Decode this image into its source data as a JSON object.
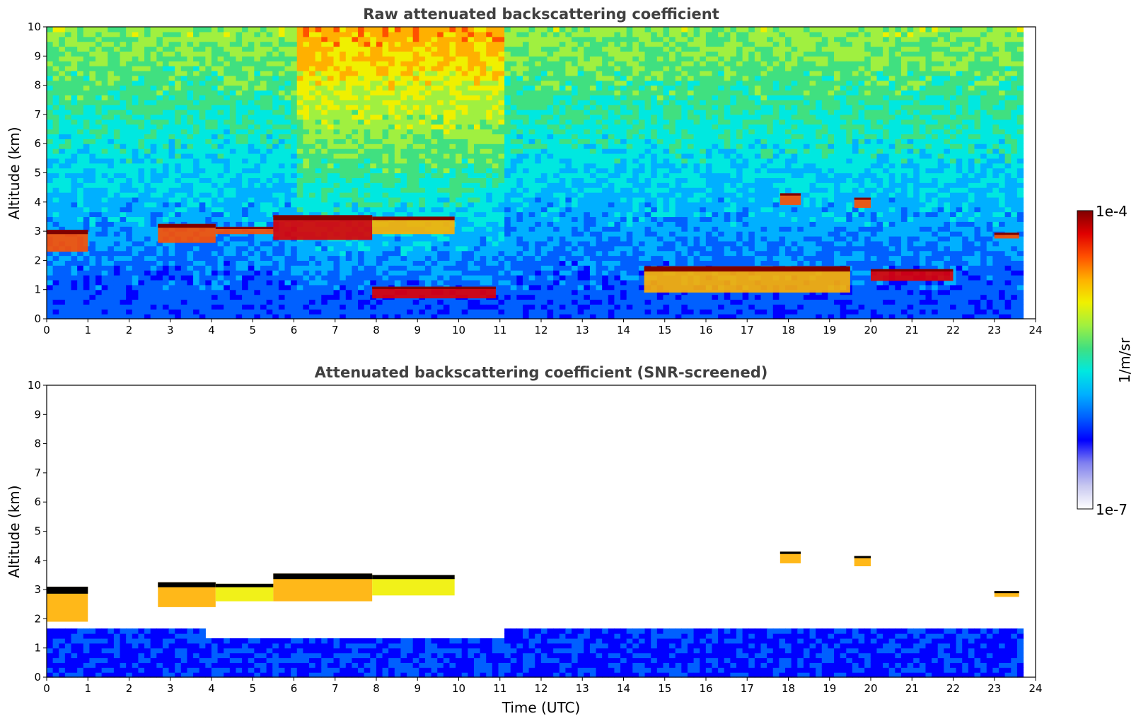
{
  "chart_data": [
    {
      "type": "heatmap",
      "title": "Raw attenuated backscattering coefficient",
      "xlabel": "",
      "ylabel": "Altitude (km)",
      "xlim": [
        0,
        24
      ],
      "ylim": [
        0,
        10
      ],
      "xticks": [
        0,
        1,
        2,
        3,
        4,
        5,
        6,
        7,
        8,
        9,
        10,
        11,
        12,
        13,
        14,
        15,
        16,
        17,
        18,
        19,
        20,
        21,
        22,
        23,
        24
      ],
      "yticks": [
        0,
        1,
        2,
        3,
        4,
        5,
        6,
        7,
        8,
        9,
        10
      ],
      "data_end_time": 23.7,
      "features": [
        {
          "kind": "cloud",
          "t0": 0.0,
          "t1": 1.0,
          "base": 2.3,
          "top": 3.05,
          "intensity": 0.85
        },
        {
          "kind": "cloud",
          "t0": 2.7,
          "t1": 4.1,
          "base": 2.6,
          "top": 3.25,
          "intensity": 0.85
        },
        {
          "kind": "cloud",
          "t0": 4.1,
          "t1": 5.5,
          "base": 2.9,
          "top": 3.15,
          "intensity": 0.8
        },
        {
          "kind": "cloud",
          "t0": 5.5,
          "t1": 7.9,
          "base": 2.7,
          "top": 3.55,
          "intensity": 0.9
        },
        {
          "kind": "cloud",
          "t0": 7.9,
          "t1": 9.9,
          "base": 2.9,
          "top": 3.5,
          "intensity": 0.7
        },
        {
          "kind": "cloud",
          "t0": 7.9,
          "t1": 10.9,
          "base": 0.7,
          "top": 1.1,
          "intensity": 0.9
        },
        {
          "kind": "cloud",
          "t0": 17.8,
          "t1": 18.3,
          "base": 3.9,
          "top": 4.3,
          "intensity": 0.8
        },
        {
          "kind": "cloud",
          "t0": 19.6,
          "t1": 20.0,
          "base": 3.8,
          "top": 4.15,
          "intensity": 0.8
        },
        {
          "kind": "cloud",
          "t0": 23.0,
          "t1": 23.6,
          "base": 2.75,
          "top": 2.95,
          "intensity": 0.85
        },
        {
          "kind": "cloud",
          "t0": 20.0,
          "t1": 22.0,
          "base": 1.3,
          "top": 1.7,
          "intensity": 0.9
        },
        {
          "kind": "cloud",
          "t0": 14.5,
          "t1": 19.5,
          "base": 0.9,
          "top": 1.8,
          "intensity": 0.75
        }
      ]
    },
    {
      "type": "heatmap",
      "title": "Attenuated backscattering coefficient (SNR-screened)",
      "xlabel": "Time (UTC)",
      "ylabel": "Altitude (km)",
      "xlim": [
        0,
        24
      ],
      "ylim": [
        0,
        10
      ],
      "xticks": [
        0,
        1,
        2,
        3,
        4,
        5,
        6,
        7,
        8,
        9,
        10,
        11,
        12,
        13,
        14,
        15,
        16,
        17,
        18,
        19,
        20,
        21,
        22,
        23,
        24
      ],
      "yticks": [
        0,
        1,
        2,
        3,
        4,
        5,
        6,
        7,
        8,
        9,
        10
      ],
      "data_end_time": 23.7,
      "features": [
        {
          "kind": "cloud",
          "t0": 0.0,
          "t1": 1.0,
          "base": 1.9,
          "top": 3.1,
          "intensity": 0.75
        },
        {
          "kind": "cloud",
          "t0": 2.7,
          "t1": 4.1,
          "base": 2.4,
          "top": 3.25,
          "intensity": 0.7
        },
        {
          "kind": "cloud",
          "t0": 4.1,
          "t1": 5.5,
          "base": 2.6,
          "top": 3.2,
          "intensity": 0.6
        },
        {
          "kind": "cloud",
          "t0": 5.5,
          "t1": 7.9,
          "base": 2.6,
          "top": 3.55,
          "intensity": 0.75
        },
        {
          "kind": "cloud",
          "t0": 7.9,
          "t1": 9.9,
          "base": 2.8,
          "top": 3.5,
          "intensity": 0.6
        },
        {
          "kind": "cloud",
          "t0": 17.8,
          "t1": 18.3,
          "base": 3.9,
          "top": 4.3,
          "intensity": 0.7
        },
        {
          "kind": "cloud",
          "t0": 19.6,
          "t1": 20.0,
          "base": 3.8,
          "top": 4.15,
          "intensity": 0.7
        },
        {
          "kind": "cloud",
          "t0": 23.0,
          "t1": 23.6,
          "base": 2.75,
          "top": 2.95,
          "intensity": 0.7
        }
      ]
    }
  ],
  "colorbar": {
    "min_label": "1e-7",
    "max_label": "1e-4",
    "unit_label": "1/m/sr",
    "colormap": [
      "#ffffff",
      "#c8c8f0",
      "#8080f0",
      "#0000ff",
      "#0060ff",
      "#00b0ff",
      "#00e8e0",
      "#40e080",
      "#a0f040",
      "#f0f000",
      "#ffb000",
      "#ff5000",
      "#e00000",
      "#800000"
    ]
  }
}
